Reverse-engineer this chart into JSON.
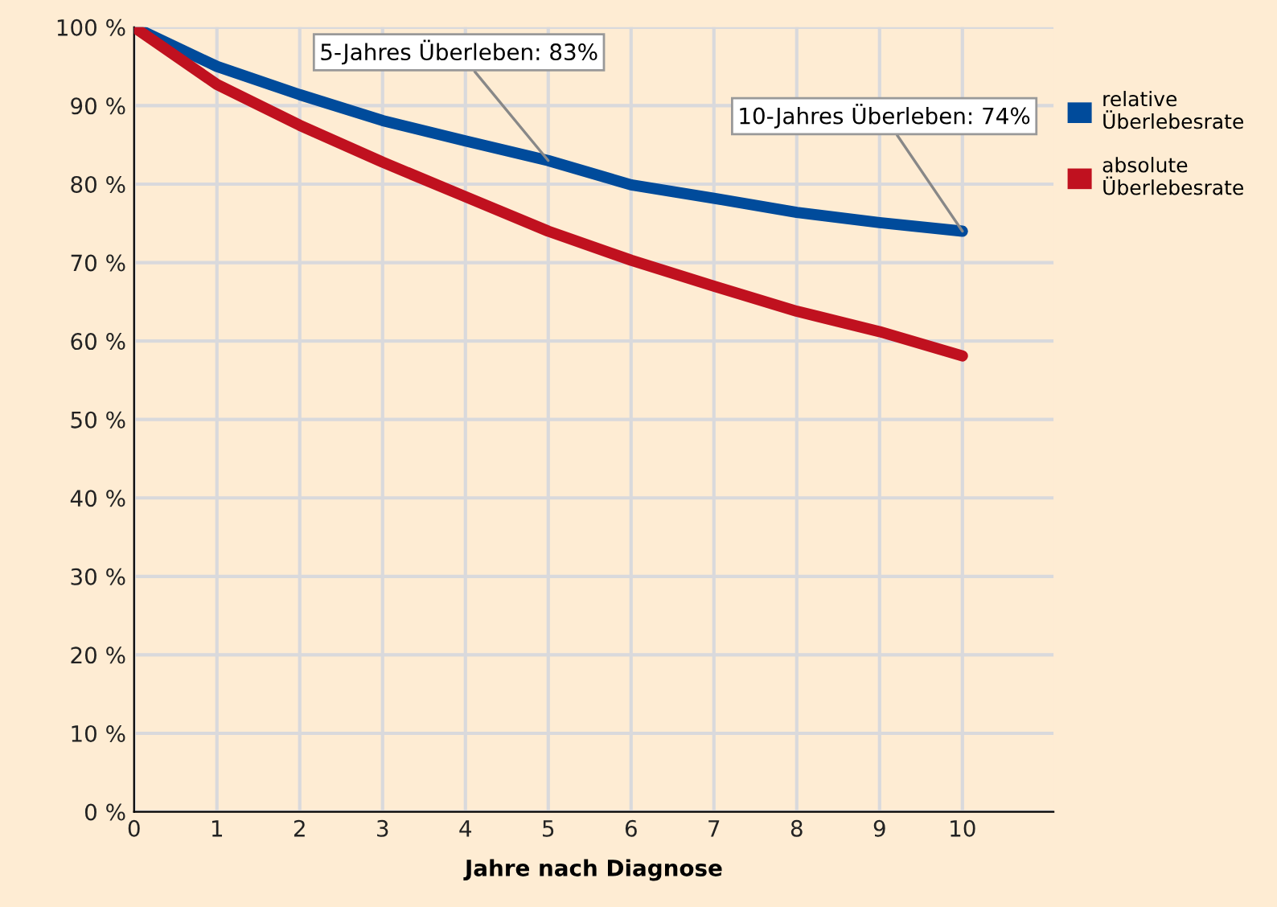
{
  "chart_data": {
    "type": "line",
    "xlabel": "Jahre nach Diagnose",
    "x": [
      0,
      1,
      2,
      3,
      4,
      5,
      6,
      7,
      8,
      9,
      10
    ],
    "series": [
      {
        "name": "relative Überlebesrate",
        "color": "#004b9b",
        "values": [
          100,
          95,
          91.4,
          88.1,
          85.5,
          83,
          79.9,
          78.2,
          76.4,
          75.1,
          74
        ]
      },
      {
        "name": "absolute Überlebesrate",
        "color": "#c0111f",
        "values": [
          100,
          92.7,
          87.5,
          82.8,
          78.4,
          74,
          70.3,
          67,
          63.8,
          61.2,
          58.1
        ]
      }
    ],
    "annotations": [
      {
        "text": "5-Jahres Überleben: 83%",
        "x": 5,
        "y": 83
      },
      {
        "text": "10-Jahres Überleben: 74%",
        "x": 10,
        "y": 74
      }
    ],
    "xlim": [
      0,
      11.1
    ],
    "ylim": [
      0,
      100
    ],
    "xticks": [
      0,
      1,
      2,
      3,
      4,
      5,
      6,
      7,
      8,
      9,
      10
    ],
    "yticks": [
      {
        "value": 0,
        "label": "0 %"
      },
      {
        "value": 10,
        "label": "10 %"
      },
      {
        "value": 20,
        "label": "20 %"
      },
      {
        "value": 30,
        "label": "30 %"
      },
      {
        "value": 40,
        "label": "40 %"
      },
      {
        "value": 50,
        "label": "50 %"
      },
      {
        "value": 60,
        "label": "60 %"
      },
      {
        "value": 70,
        "label": "70 %"
      },
      {
        "value": 80,
        "label": "80 %"
      },
      {
        "value": 90,
        "label": "90 %"
      },
      {
        "value": 100,
        "label": "100 %"
      }
    ],
    "grid": true,
    "legend": "right",
    "marker": "none",
    "line_style": "solid"
  }
}
